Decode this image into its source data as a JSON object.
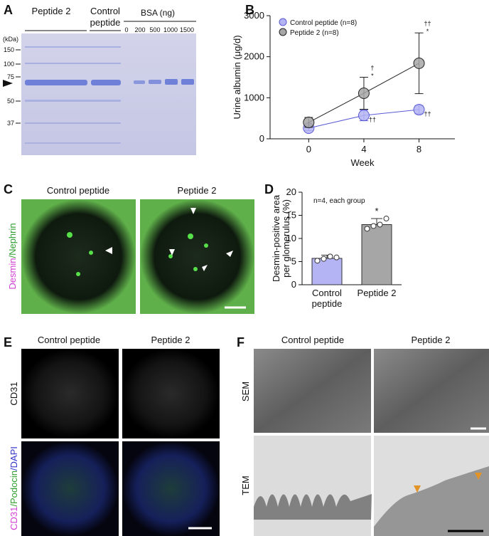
{
  "panels": {
    "a": {
      "label": "A",
      "peptide": "Peptide 2",
      "control": [
        "Control",
        "peptide"
      ],
      "bsa": "BSA (ng)",
      "lanes": [
        "0",
        "200",
        "500",
        "1000",
        "1500"
      ],
      "unit": "(kDa)",
      "markers": [
        "150",
        "100",
        "75",
        "50",
        "37"
      ]
    },
    "b": {
      "label": "B"
    },
    "c": {
      "label": "C",
      "titles": [
        "Control peptide",
        "Peptide 2"
      ],
      "stain": [
        {
          "text": "Desmin",
          "color": "#d23cd2"
        },
        {
          "text": "/Nephrin",
          "color": "#2e9e2e"
        }
      ]
    },
    "d": {
      "label": "D"
    },
    "e": {
      "label": "E",
      "titles": [
        "Control peptide",
        "Peptide 2"
      ],
      "row1": "CD31",
      "row2": [
        {
          "text": "CD31",
          "color": "#d23cd2"
        },
        {
          "text": "/Podocin",
          "color": "#2e9e2e"
        },
        {
          "text": "/DAPI",
          "color": "#3333cc"
        }
      ]
    },
    "f": {
      "label": "F",
      "titles": [
        "Control peptide",
        "Peptide 2"
      ],
      "rows": [
        "SEM",
        "TEM"
      ]
    }
  },
  "chart_data": [
    {
      "type": "line",
      "x_label": "Week",
      "y_label": "Urine albumin (μg/d)",
      "x": [
        0,
        4,
        8
      ],
      "xlim": [
        -2.8,
        10.6
      ],
      "xticks": [
        0,
        4,
        8
      ],
      "ylim": [
        0,
        3000
      ],
      "yticks": [
        0,
        1000,
        2000,
        3000
      ],
      "series": [
        {
          "name": "Control peptide (n=8)",
          "color": "#5b5bd6",
          "fill": "#b4b4f5",
          "values": [
            260,
            570,
            710
          ],
          "errors": [
            60,
            130,
            100
          ],
          "significance": [
            null,
            [
              "††"
            ],
            [
              "††"
            ]
          ]
        },
        {
          "name": "Peptide 2 (n=8)",
          "color": "#222222",
          "fill": "#a6a6a6",
          "values": [
            400,
            1110,
            1840
          ],
          "errors": [
            120,
            390,
            740
          ],
          "significance": [
            null,
            [
              "†",
              "*"
            ],
            [
              "††",
              "*"
            ]
          ]
        }
      ]
    },
    {
      "type": "bar",
      "y_label": [
        "Desmin-positive area",
        "per glomerulus (%)"
      ],
      "note": "n=4, each group",
      "categories": [
        [
          "Control",
          "peptide"
        ],
        [
          "Peptide 2"
        ]
      ],
      "values": [
        5.7,
        13.0
      ],
      "errors": [
        0.7,
        1.3
      ],
      "points": [
        [
          5.2,
          5.6,
          6.1,
          5.9
        ],
        [
          12.1,
          12.7,
          13.0,
          14.3
        ]
      ],
      "colors": [
        "#b4b4f5",
        "#a6a6a6"
      ],
      "edge": "#333333",
      "significance": [
        null,
        "*"
      ],
      "ylim": [
        0,
        20
      ],
      "yticks": [
        0,
        5,
        10,
        15,
        20
      ]
    }
  ]
}
